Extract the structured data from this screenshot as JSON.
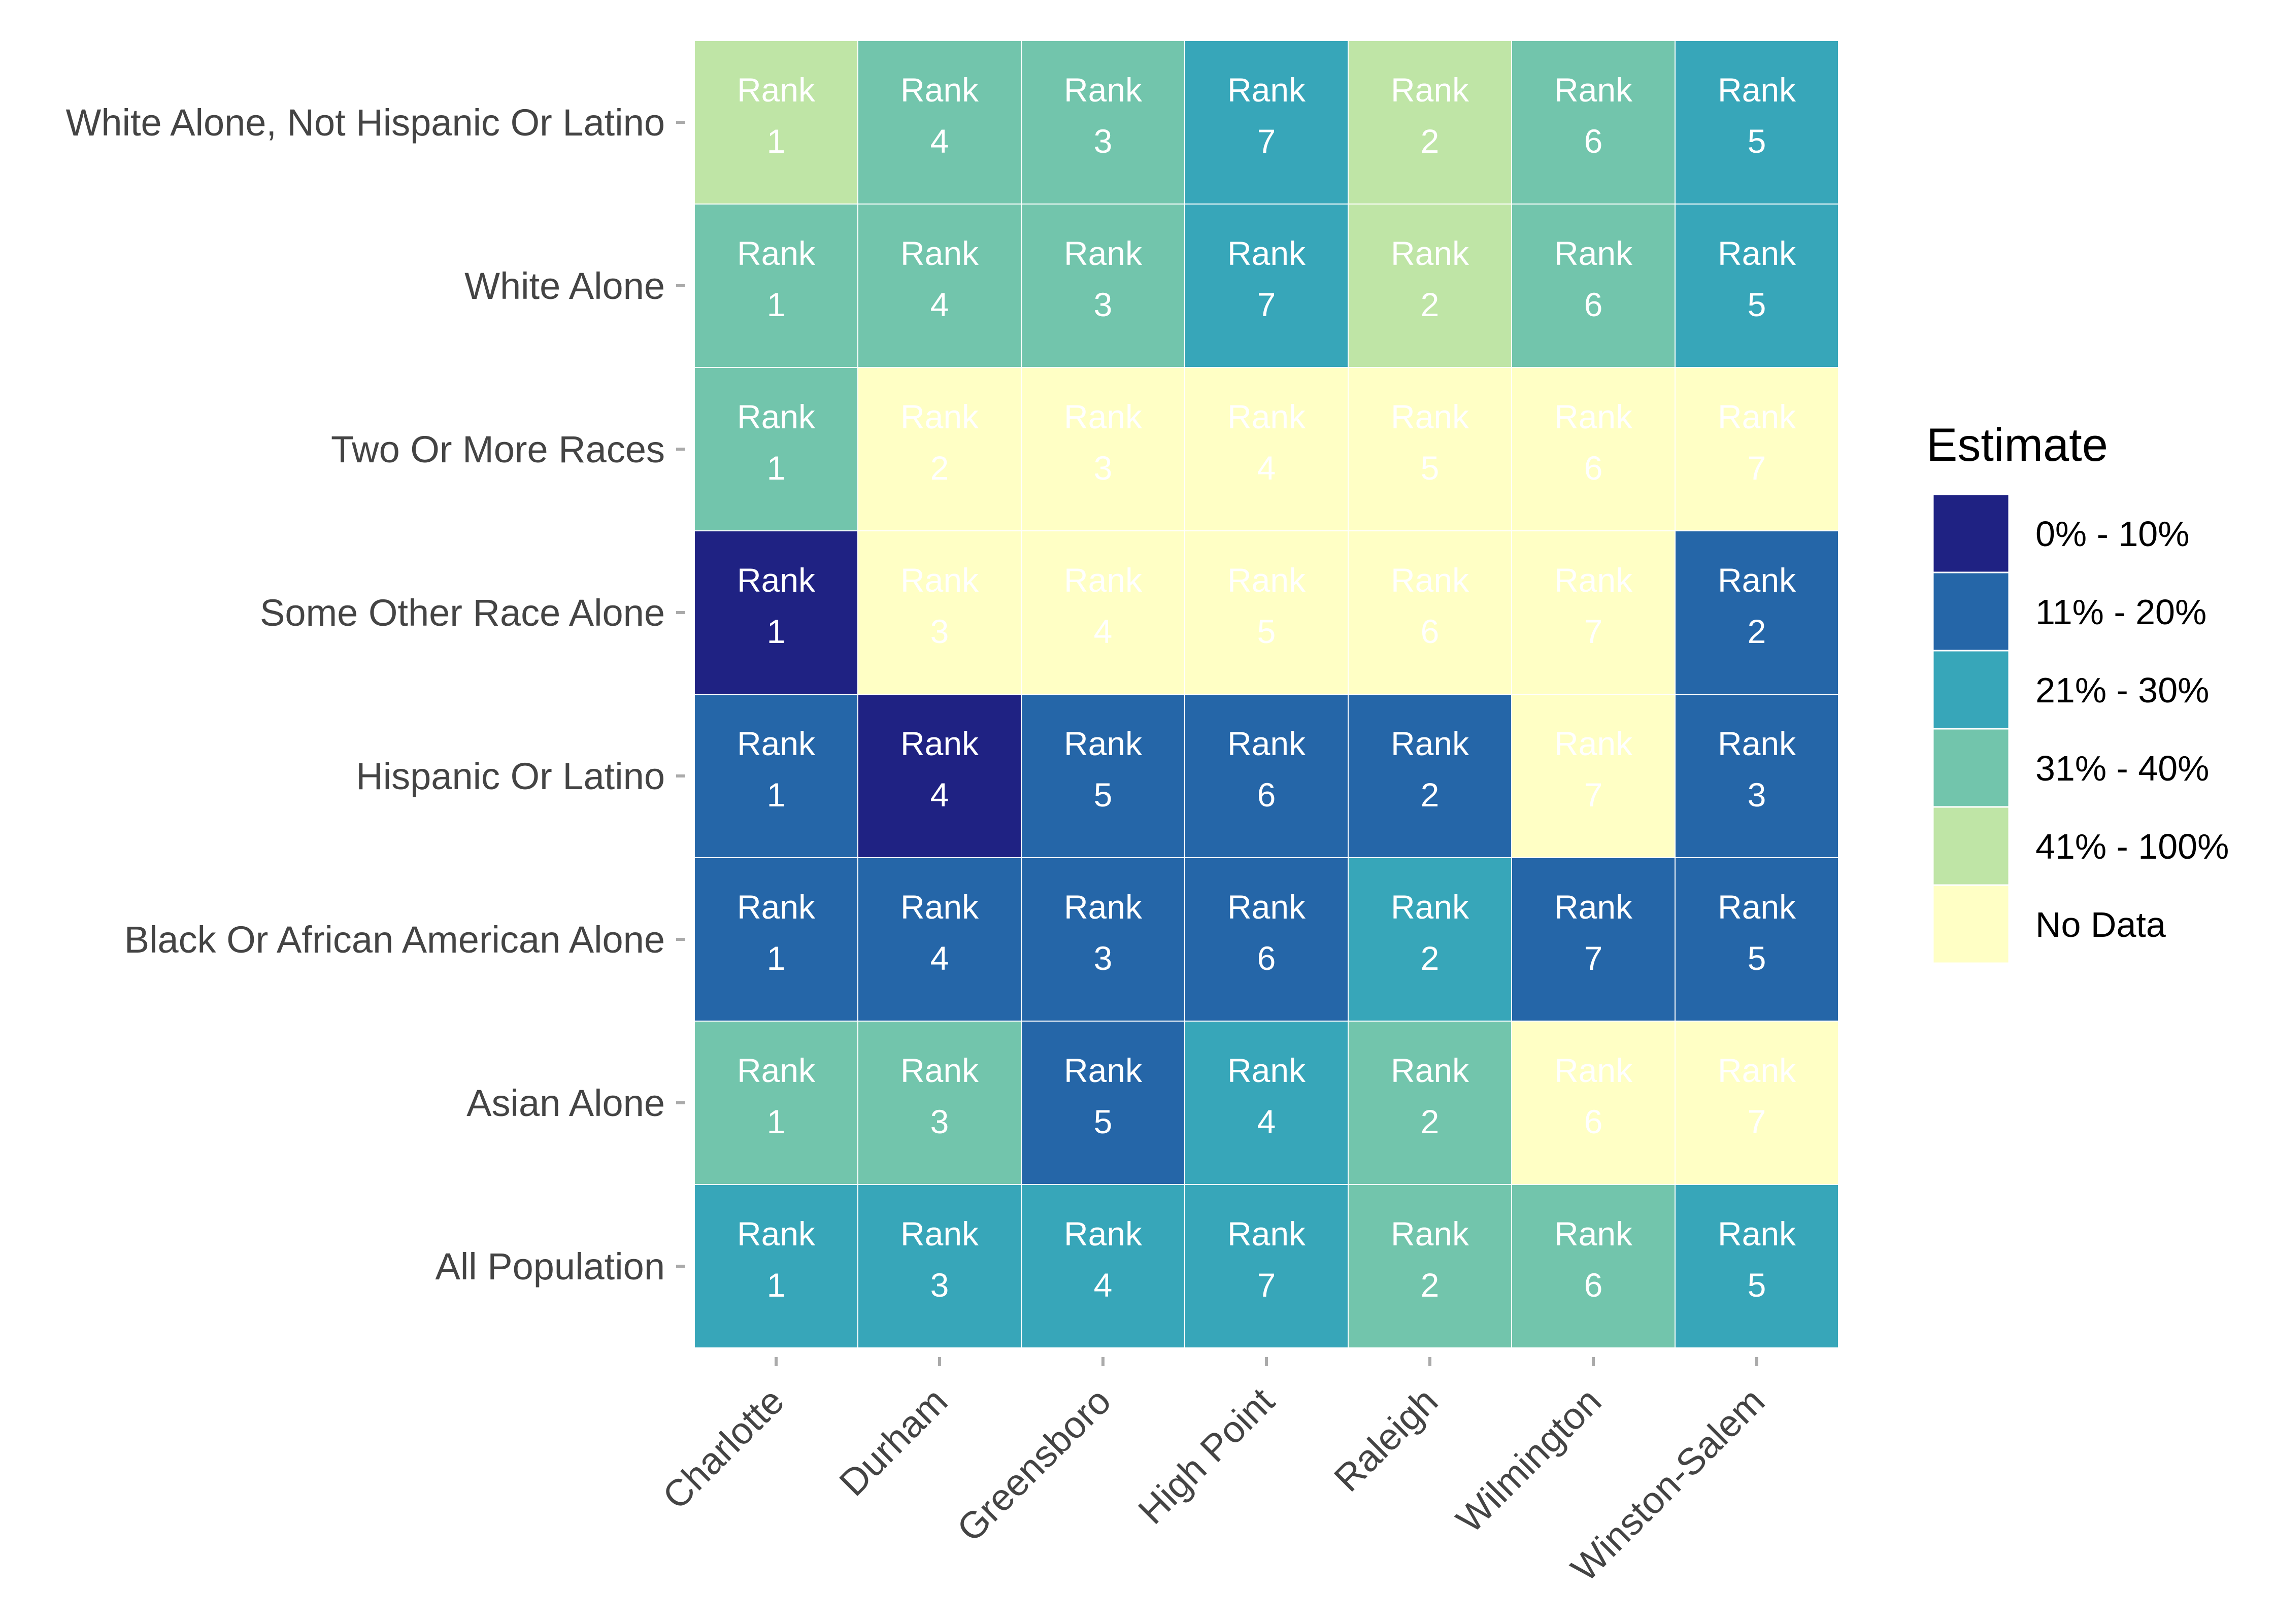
{
  "chart_data": {
    "type": "heatmap",
    "title": "",
    "xlabel": "",
    "ylabel": "",
    "x_categories": [
      "Charlotte",
      "Durham",
      "Greensboro",
      "High Point",
      "Raleigh",
      "Wilmington",
      "Winston-Salem"
    ],
    "y_categories_top_to_bottom": [
      "White Alone, Not Hispanic Or Latino",
      "White Alone",
      "Two Or More Races",
      "Some Other Race Alone",
      "Hispanic Or Latino",
      "Black Or African American Alone",
      "Asian Alone",
      "All Population"
    ],
    "cell_label_prefix": "Rank",
    "ranks": [
      [
        1,
        4,
        3,
        7,
        2,
        6,
        5
      ],
      [
        1,
        4,
        3,
        7,
        2,
        6,
        5
      ],
      [
        1,
        2,
        3,
        4,
        5,
        6,
        7
      ],
      [
        1,
        3,
        4,
        5,
        6,
        7,
        2
      ],
      [
        1,
        4,
        5,
        6,
        2,
        7,
        3
      ],
      [
        1,
        4,
        3,
        6,
        2,
        7,
        5
      ],
      [
        1,
        3,
        5,
        4,
        2,
        6,
        7
      ],
      [
        1,
        3,
        4,
        7,
        2,
        6,
        5
      ]
    ],
    "estimate_bins": [
      [
        "41% - 100%",
        "31% - 40%",
        "31% - 40%",
        "21% - 30%",
        "41% - 100%",
        "31% - 40%",
        "21% - 30%"
      ],
      [
        "31% - 40%",
        "31% - 40%",
        "31% - 40%",
        "21% - 30%",
        "41% - 100%",
        "31% - 40%",
        "21% - 30%"
      ],
      [
        "31% - 40%",
        "No Data",
        "No Data",
        "No Data",
        "No Data",
        "No Data",
        "No Data"
      ],
      [
        "0% - 10%",
        "No Data",
        "No Data",
        "No Data",
        "No Data",
        "No Data",
        "11% - 20%"
      ],
      [
        "11% - 20%",
        "0% - 10%",
        "11% - 20%",
        "11% - 20%",
        "11% - 20%",
        "No Data",
        "11% - 20%"
      ],
      [
        "11% - 20%",
        "11% - 20%",
        "11% - 20%",
        "11% - 20%",
        "21% - 30%",
        "11% - 20%",
        "11% - 20%"
      ],
      [
        "31% - 40%",
        "31% - 40%",
        "11% - 20%",
        "21% - 30%",
        "31% - 40%",
        "No Data",
        "No Data"
      ],
      [
        "21% - 30%",
        "21% - 30%",
        "21% - 30%",
        "21% - 30%",
        "31% - 40%",
        "31% - 40%",
        "21% - 30%"
      ]
    ],
    "legend": {
      "title": "Estimate",
      "placement": "right",
      "entries": [
        {
          "label": "0% - 10%",
          "color": "#1f2283"
        },
        {
          "label": "11% - 20%",
          "color": "#2566a8"
        },
        {
          "label": "21% - 30%",
          "color": "#37a6b9"
        },
        {
          "label": "31% - 40%",
          "color": "#72c5ac"
        },
        {
          "label": "41% - 100%",
          "color": "#bfe5a6"
        },
        {
          "label": "No Data",
          "color": "#ffffc5"
        }
      ]
    },
    "grid": false
  }
}
